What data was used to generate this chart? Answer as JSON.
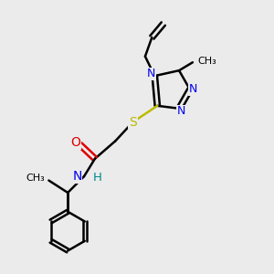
{
  "background_color": "#ebebeb",
  "atom_colors": {
    "C": "#000000",
    "N": "#0000ee",
    "O": "#dd0000",
    "S": "#bbbb00",
    "H": "#008888"
  },
  "bond_lw": 1.8,
  "figsize": [
    3.0,
    3.0
  ],
  "dpi": 100,
  "xlim": [
    0,
    10
  ],
  "ylim": [
    0,
    10
  ]
}
